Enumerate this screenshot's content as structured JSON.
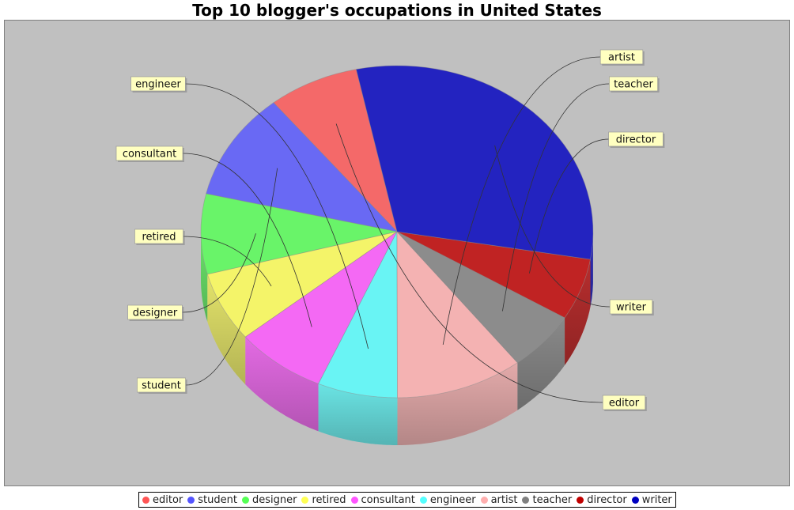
{
  "chart_data": {
    "type": "pie",
    "title": "Top 10 blogger's occupations in United States",
    "slices": [
      {
        "label": "editor",
        "value": 7.5,
        "color": "#ff5555"
      },
      {
        "label": "student",
        "value": 10.5,
        "color": "#5555ff"
      },
      {
        "label": "designer",
        "value": 7.8,
        "color": "#55ff55"
      },
      {
        "label": "retired",
        "value": 6.8,
        "color": "#ffff55"
      },
      {
        "label": "consultant",
        "value": 7.5,
        "color": "#ff55ff"
      },
      {
        "label": "engineer",
        "value": 6.6,
        "color": "#55ffff"
      },
      {
        "label": "artist",
        "value": 10.5,
        "color": "#ffafaf"
      },
      {
        "label": "teacher",
        "value": 5.8,
        "color": "#808080"
      },
      {
        "label": "director",
        "value": 6.0,
        "color": "#c00000"
      },
      {
        "label": "writer",
        "value": 31.0,
        "color": "#0000c0"
      }
    ],
    "legend_position": "bottom",
    "background": "#c0c0c0"
  }
}
